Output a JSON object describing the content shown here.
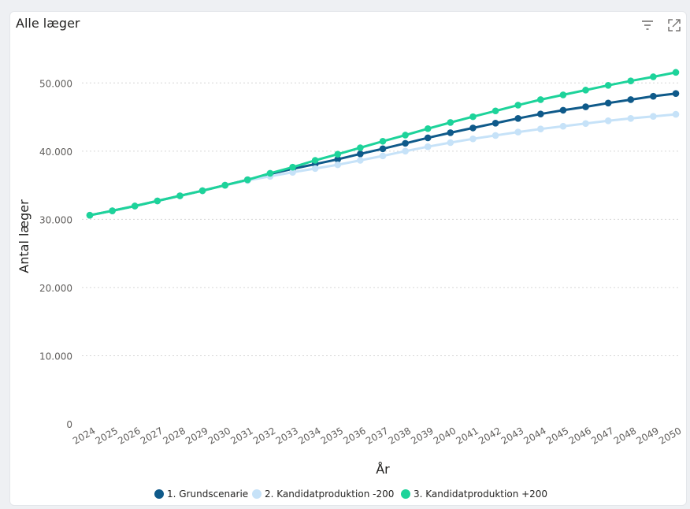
{
  "visual": {
    "title": "Alle læger",
    "icons": [
      "filter-icon",
      "focus-mode-icon"
    ]
  },
  "chart_data": {
    "type": "line",
    "title": "Alle læger",
    "xlabel": "År",
    "ylabel": "Antal læger",
    "ylim": [
      0,
      55000
    ],
    "yticks": [
      0,
      10000,
      20000,
      30000,
      40000,
      50000
    ],
    "ytick_labels": [
      "0",
      "10.000",
      "20.000",
      "30.000",
      "40.000",
      "50.000"
    ],
    "grid": true,
    "legend_position": "bottom",
    "categories": [
      "2024",
      "2025",
      "2026",
      "2027",
      "2028",
      "2029",
      "2030",
      "2031",
      "2032",
      "2033",
      "2034",
      "2035",
      "2036",
      "2037",
      "2038",
      "2039",
      "2040",
      "2041",
      "2042",
      "2043",
      "2044",
      "2045",
      "2046",
      "2047",
      "2048",
      "2049",
      "2050"
    ],
    "series": [
      {
        "name": "1. Grundscenarie",
        "color": "#0f5a8a",
        "values": [
          30600,
          31250,
          31950,
          32700,
          33450,
          34200,
          35000,
          35800,
          36650,
          37400,
          38100,
          38800,
          39600,
          40350,
          41150,
          41950,
          42700,
          43400,
          44100,
          44800,
          45450,
          46000,
          46500,
          47050,
          47550,
          48050,
          48450
        ]
      },
      {
        "name": "2. Kandidatproduktion -200",
        "color": "#c6e2f8",
        "values": [
          30600,
          31250,
          31950,
          32700,
          33450,
          34200,
          35000,
          35700,
          36300,
          36900,
          37450,
          38000,
          38650,
          39300,
          40000,
          40650,
          41250,
          41800,
          42300,
          42800,
          43250,
          43650,
          44050,
          44450,
          44800,
          45100,
          45400
        ]
      },
      {
        "name": "3. Kandidatproduktion +200",
        "color": "#1dd39a",
        "values": [
          30600,
          31250,
          31950,
          32700,
          33450,
          34200,
          35000,
          35800,
          36750,
          37650,
          38650,
          39550,
          40500,
          41450,
          42350,
          43300,
          44200,
          45050,
          45900,
          46750,
          47550,
          48250,
          48950,
          49650,
          50300,
          50900,
          51550
        ]
      }
    ]
  }
}
